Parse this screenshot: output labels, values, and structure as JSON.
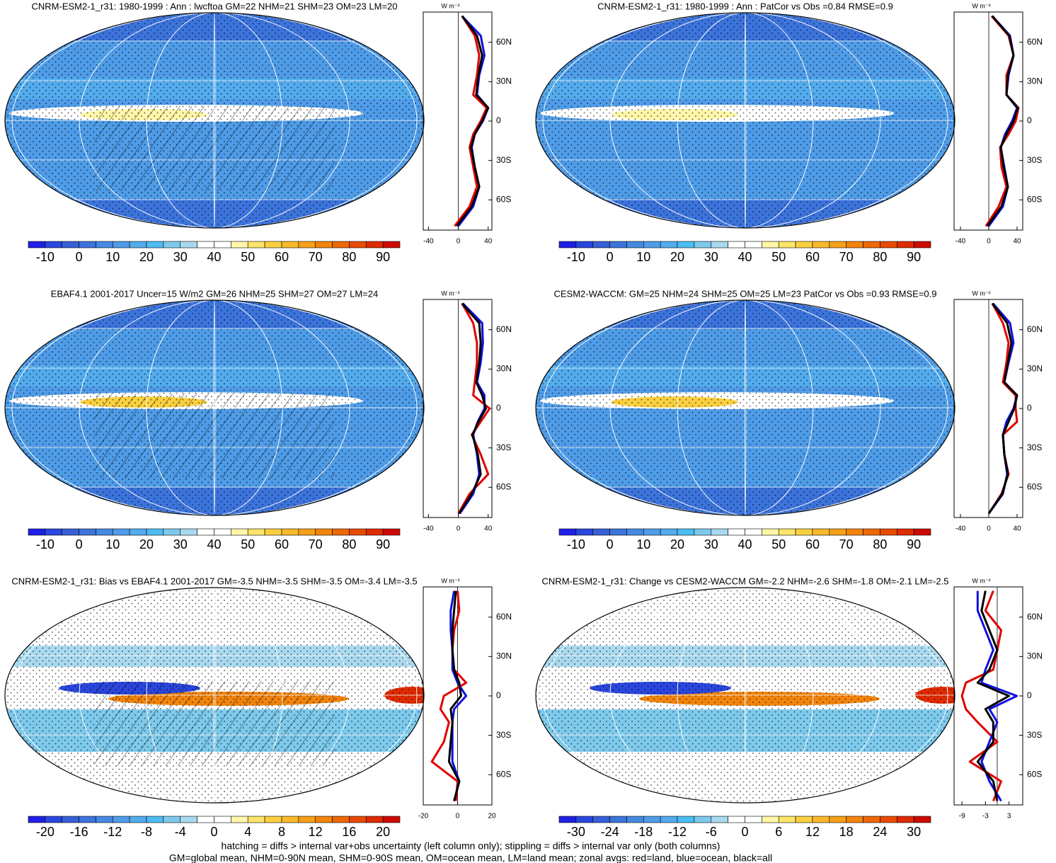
{
  "palette": [
    "#1f1fe6",
    "#2b46de",
    "#3560d8",
    "#3c74dc",
    "#4689e2",
    "#4f9ce8",
    "#53acee",
    "#4cbdf2",
    "#7ecaec",
    "#a9d9ef",
    "#ffffff",
    "#ffffff",
    "#fff6a8",
    "#fde46a",
    "#fbd040",
    "#f9b928",
    "#f6a018",
    "#f2840c",
    "#ee6806",
    "#e84a02",
    "#e02a00",
    "#cc0a00"
  ],
  "panels": [
    {
      "title": "CNRM-ESM2-1_r31: 1980-1999 : Ann : lwcftoa GM=22 NHM=21 SHM=23 OM=23 LM=20",
      "colorbar": {
        "lim": [
          -15,
          95
        ],
        "ticks": [
          -10,
          0,
          10,
          20,
          30,
          40,
          50,
          60,
          70,
          80,
          90
        ]
      },
      "profile": {
        "unit": "W m⁻²",
        "xlim": [
          -47,
          45
        ],
        "xticks": [
          -40,
          0,
          40
        ],
        "ylim": [
          -83,
          83
        ],
        "yticks": [
          {
            "value": 60,
            "label": "60N"
          },
          {
            "value": 30,
            "label": "30N"
          },
          0,
          {
            "value": -30,
            "label": "30S"
          },
          {
            "value": -60,
            "label": "60S"
          }
        ],
        "lat": [
          -80,
          -65,
          -50,
          -35,
          -20,
          -10,
          0,
          10,
          20,
          35,
          50,
          65,
          80
        ],
        "series": [
          {
            "color": "#e00000",
            "values": [
              -5,
              15,
              25,
              20,
              15,
              20,
              30,
              38,
              20,
              25,
              28,
              22,
              5
            ]
          },
          {
            "color": "#1010e0",
            "values": [
              0,
              20,
              28,
              22,
              18,
              22,
              33,
              40,
              25,
              28,
              35,
              30,
              5
            ]
          },
          {
            "color": "#000000",
            "values": [
              -2,
              18,
              28,
              22,
              17,
              22,
              32,
              40,
              24,
              27,
              32,
              25,
              5
            ]
          }
        ]
      }
    },
    {
      "title": "CNRM-ESM2-1_r31: 1980-1999 : Ann : PatCor vs Obs =0.84 RMSE=0.9",
      "colorbar": {
        "lim": [
          -15,
          95
        ],
        "ticks": [
          -10,
          0,
          10,
          20,
          30,
          40,
          50,
          60,
          70,
          80,
          90
        ]
      },
      "profile": {
        "unit": "W m⁻²",
        "xlim": [
          -49,
          48
        ],
        "xticks": [
          -40,
          0,
          40
        ],
        "ylim": [
          -83,
          83
        ],
        "yticks": [
          {
            "value": 60,
            "label": "60N"
          },
          {
            "value": 30,
            "label": "30N"
          },
          0,
          {
            "value": -30,
            "label": "30S"
          },
          {
            "value": -60,
            "label": "60S"
          }
        ],
        "lat": [
          -80,
          -65,
          -50,
          -35,
          -20,
          -10,
          0,
          10,
          20,
          35,
          50,
          65,
          80
        ],
        "series": [
          {
            "color": "#e00000",
            "values": [
              -4,
              14,
              25,
              18,
              16,
              28,
              38,
              42,
              25,
              25,
              35,
              28,
              4
            ]
          },
          {
            "color": "#1010e0",
            "values": [
              0,
              20,
              27,
              22,
              17,
              23,
              33,
              40,
              25,
              28,
              35,
              30,
              5
            ]
          },
          {
            "color": "#000000",
            "values": [
              -2,
              18,
              27,
              21,
              17,
              25,
              35,
              41,
              25,
              27,
              35,
              29,
              5
            ]
          }
        ]
      }
    },
    {
      "title": "EBAF4.1 2001-2017 Uncer=15 W/m2 GM=26 NHM=25 SHM=27 OM=27 LM=24",
      "colorbar": {
        "lim": [
          -15,
          95
        ],
        "ticks": [
          -10,
          0,
          10,
          20,
          30,
          40,
          50,
          60,
          70,
          80,
          90
        ]
      },
      "profile": {
        "unit": "W m⁻²",
        "xlim": [
          -47,
          45
        ],
        "xticks": [
          -40,
          0,
          40
        ],
        "ylim": [
          -83,
          83
        ],
        "yticks": [
          {
            "value": 60,
            "label": "60N"
          },
          {
            "value": 30,
            "label": "30N"
          },
          0,
          {
            "value": -30,
            "label": "30S"
          },
          {
            "value": -60,
            "label": "60S"
          }
        ],
        "lat": [
          -80,
          -65,
          -50,
          -35,
          -20,
          -10,
          0,
          10,
          20,
          35,
          50,
          65,
          80
        ],
        "series": [
          {
            "color": "#e00000",
            "values": [
              0,
              15,
              40,
              30,
              18,
              30,
              42,
              20,
              22,
              25,
              25,
              20,
              5
            ]
          },
          {
            "color": "#1010e0",
            "values": [
              2,
              20,
              28,
              25,
              20,
              26,
              35,
              35,
              25,
              30,
              33,
              32,
              6
            ]
          },
          {
            "color": "#000000",
            "values": [
              1,
              18,
              30,
              26,
              19,
              27,
              37,
              32,
              24,
              28,
              30,
              28,
              5
            ]
          }
        ]
      }
    },
    {
      "title": "CESM2-WACCM: GM=25 NHM=24 SHM=25 OM=25 LM=23 PatCor vs Obs =0.93 RMSE=0.9",
      "colorbar": {
        "lim": [
          -15,
          95
        ],
        "ticks": [
          -10,
          0,
          10,
          20,
          30,
          40,
          50,
          60,
          70,
          80,
          90
        ]
      },
      "profile": {
        "unit": "W m⁻²",
        "xlim": [
          -49,
          48
        ],
        "xticks": [
          -40,
          0,
          40
        ],
        "ylim": [
          -83,
          83
        ],
        "yticks": [
          {
            "value": 60,
            "label": "60N"
          },
          {
            "value": 30,
            "label": "30N"
          },
          0,
          {
            "value": -30,
            "label": "30S"
          },
          {
            "value": -60,
            "label": "60S"
          }
        ],
        "lat": [
          -80,
          -65,
          -50,
          -35,
          -20,
          -10,
          0,
          10,
          20,
          35,
          50,
          65,
          80
        ],
        "series": [
          {
            "color": "#e00000",
            "values": [
              0,
              18,
              28,
              22,
              20,
              40,
              38,
              38,
              20,
              25,
              28,
              20,
              5
            ]
          },
          {
            "color": "#1010e0",
            "values": [
              0,
              20,
              26,
              22,
              20,
              25,
              35,
              40,
              22,
              28,
              35,
              30,
              6
            ]
          },
          {
            "color": "#000000",
            "values": [
              0,
              19,
              27,
              22,
              20,
              28,
              36,
              40,
              22,
              27,
              32,
              26,
              5
            ]
          }
        ]
      }
    },
    {
      "title": "CNRM-ESM2-1_r31: Bias vs EBAF4.1 2001-2017 GM=-3.5 NHM=-3.5 SHM=-3.5 OM=-3.4 LM=-3.5",
      "colorbar": {
        "lim": [
          -22,
          22
        ],
        "ticks": [
          -20,
          -16,
          -12,
          -8,
          -4,
          0,
          4,
          8,
          12,
          16,
          20
        ]
      },
      "profile": {
        "unit": "W m⁻²",
        "xlim": [
          -20,
          20
        ],
        "xticks": [
          -20,
          0,
          20
        ],
        "ylim": [
          -83,
          83
        ],
        "yticks": [
          {
            "value": 60,
            "label": "60N"
          },
          {
            "value": 30,
            "label": "30N"
          },
          0,
          {
            "value": -30,
            "label": "30S"
          },
          {
            "value": -60,
            "label": "60S"
          }
        ],
        "lat": [
          -80,
          -65,
          -50,
          -35,
          -20,
          -10,
          0,
          10,
          20,
          35,
          50,
          65,
          80
        ],
        "series": [
          {
            "color": "#e00000",
            "values": [
              -1,
              0,
              -15,
              -8,
              -5,
              -10,
              -8,
              5,
              -2,
              -3,
              -2,
              1,
              0
            ]
          },
          {
            "color": "#1010e0",
            "values": [
              -2,
              1,
              -3,
              -3,
              -3,
              -2,
              5,
              0,
              -3,
              -3,
              -4,
              -4,
              -2
            ]
          },
          {
            "color": "#000000",
            "values": [
              -2,
              1,
              -5,
              -4,
              -3,
              -4,
              2,
              1,
              -2,
              -3,
              -3,
              -2,
              -1
            ]
          }
        ]
      }
    },
    {
      "title": "CNRM-ESM2-1_r31: Change vs CESM2-WACCM GM=-2.2 NHM=-2.6 SHM=-1.8 OM=-2.1 LM=-2.5",
      "colorbar": {
        "lim": [
          -33,
          33
        ],
        "ticks": [
          -30,
          -24,
          -18,
          -12,
          -6,
          0,
          6,
          12,
          18,
          24,
          30
        ]
      },
      "profile": {
        "unit": "W m⁻²",
        "xlim": [
          -11,
          6.5
        ],
        "xticks": [
          -9,
          -3,
          3
        ],
        "ylim": [
          -83,
          83
        ],
        "yticks": [
          {
            "value": 60,
            "label": "60N"
          },
          {
            "value": 30,
            "label": "30N"
          },
          0,
          {
            "value": -30,
            "label": "30S"
          },
          {
            "value": -60,
            "label": "60S"
          }
        ],
        "lat": [
          -80,
          -65,
          -50,
          -35,
          -20,
          -10,
          0,
          10,
          20,
          35,
          50,
          65,
          80
        ],
        "series": [
          {
            "color": "#e00000",
            "values": [
              -1,
              1,
              -7,
              0,
              -5,
              -8,
              -9,
              -8,
              -1,
              0,
              1,
              -3,
              -1
            ]
          },
          {
            "color": "#1010e0",
            "values": [
              1,
              -2,
              -4,
              -2,
              0,
              -2,
              5,
              -4,
              -3,
              -1,
              -3,
              -5,
              -5
            ]
          },
          {
            "color": "#000000",
            "values": [
              0,
              -1,
              -5,
              -1,
              -1,
              -3,
              3,
              -5,
              -2,
              0,
              -2,
              -4,
              -3
            ]
          }
        ]
      }
    }
  ],
  "footer": [
    "hatching = diffs > internal var+obs uncertainty (left column only); stippling = diffs > internal var only (both columns)",
    "GM=global mean, NHM=0-90N mean, SHM=0-90S mean, OM=ocean mean, LM=land mean; zonal avgs: red=land, blue=ocean, black=all"
  ]
}
